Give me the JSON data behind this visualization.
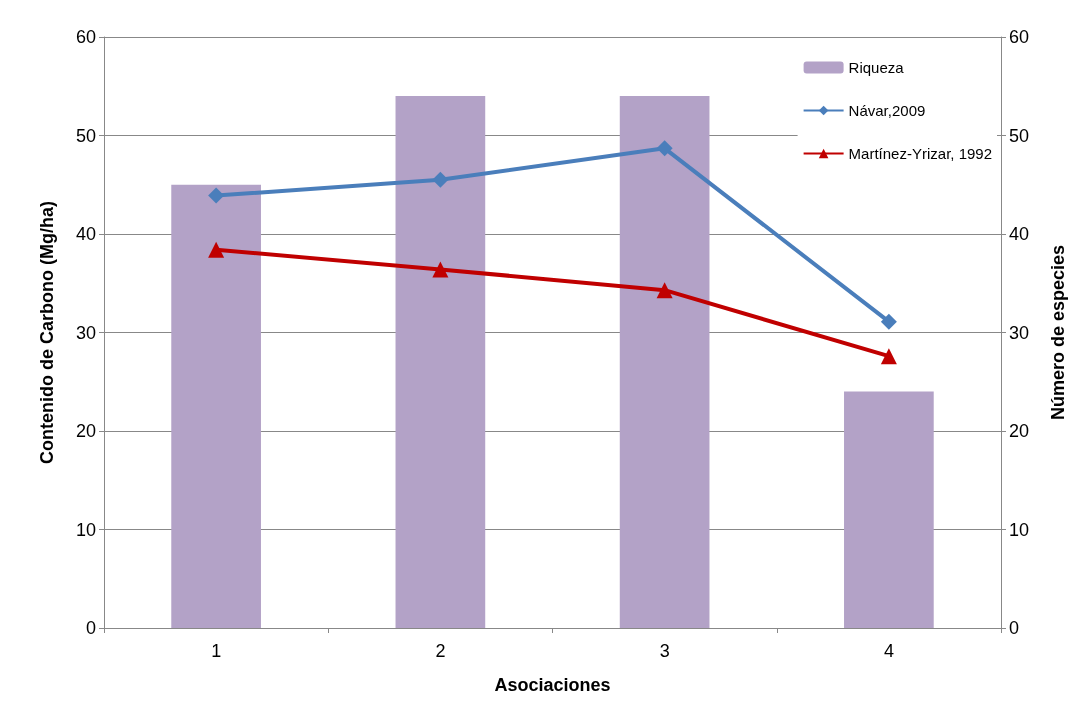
{
  "chart_data": {
    "type": "bar",
    "xlabel": "Asociaciones",
    "ylabel": "Contenido de Carbono (Mg/ha)",
    "y2label": "Número de especies",
    "categories": [
      "1",
      "2",
      "3",
      "4"
    ],
    "series": [
      {
        "name": "Riqueza",
        "axis": "y2",
        "color": "#b3a2c7",
        "values": [
          45,
          54,
          54,
          24
        ]
      },
      {
        "name": "Návar,2009",
        "type": "line",
        "marker": "diamond",
        "color": "#4a7ebb",
        "values": [
          43.9,
          45.5,
          48.7,
          31.1
        ]
      },
      {
        "name": "Martínez-Yrizar, 1992",
        "type": "line",
        "marker": "triangle",
        "color": "#c00000",
        "values": [
          38.4,
          36.4,
          34.3,
          27.6
        ]
      }
    ],
    "ylim": [
      0,
      60
    ],
    "yticks": [
      0,
      10,
      20,
      30,
      40,
      50,
      60
    ],
    "y2lim": [
      0,
      60
    ],
    "y2ticks": [
      0,
      10,
      20,
      30,
      40,
      50,
      60
    ],
    "grid": "y",
    "legend": "top right"
  }
}
